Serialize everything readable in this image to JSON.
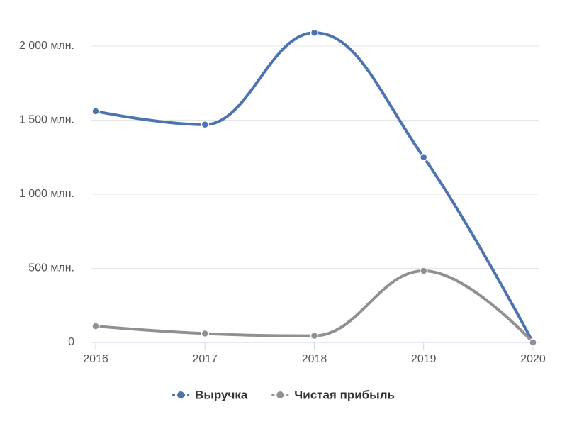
{
  "chart_data": {
    "type": "line",
    "categories": [
      "2016",
      "2017",
      "2018",
      "2019",
      "2020"
    ],
    "series": [
      {
        "name": "Выручка",
        "color": "#4c74b0",
        "values": [
          1560,
          1470,
          2090,
          1250,
          0
        ]
      },
      {
        "name": "Чистая прибыль",
        "color": "#909090",
        "values": [
          110,
          60,
          45,
          483,
          0
        ]
      }
    ],
    "ylim": [
      0,
      2000
    ],
    "yticks": [
      0,
      {
        "value": 500,
        "label": "500 млн."
      },
      {
        "value": 1000,
        "label": "1 000 млн."
      },
      {
        "value": 1500,
        "label": "1 500 млн."
      },
      {
        "value": 2000,
        "label": "2 000 млн."
      }
    ],
    "grid": true,
    "legend": "bottom"
  }
}
